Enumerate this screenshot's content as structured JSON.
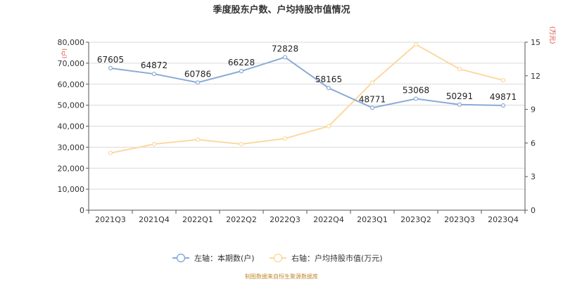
{
  "chart_data": {
    "type": "line",
    "title": "季度股东户数、户均持股市值情况",
    "categories": [
      "2021Q3",
      "2021Q4",
      "2022Q1",
      "2022Q2",
      "2022Q3",
      "2022Q4",
      "2023Q1",
      "2023Q2",
      "2023Q3",
      "2023Q4"
    ],
    "left_axis": {
      "unit_label": "(户)",
      "ylim": [
        0,
        80000
      ],
      "ticks": [
        "0",
        "10,000",
        "20,000",
        "30,000",
        "40,000",
        "50,000",
        "60,000",
        "70,000",
        "80,000"
      ]
    },
    "right_axis": {
      "unit_label": "(万元)",
      "ylim": [
        0,
        15
      ],
      "ticks": [
        "0",
        "3",
        "6",
        "9",
        "12",
        "15"
      ]
    },
    "series": [
      {
        "name": "左轴：本期数(户)",
        "axis": "left",
        "color": "#8aabd6",
        "values": [
          67605,
          64872,
          60786,
          66228,
          72828,
          58165,
          48771,
          53068,
          50291,
          49871
        ],
        "labels": [
          "67605",
          "64872",
          "60786",
          "66228",
          "72828",
          "58165",
          "48771",
          "53068",
          "50291",
          "49871"
        ]
      },
      {
        "name": "右轴：户均持股市值(万元)",
        "axis": "right",
        "color": "#fbd9a0",
        "values": [
          5.1,
          5.9,
          6.3,
          5.9,
          6.4,
          7.5,
          11.4,
          14.8,
          12.6,
          11.6
        ]
      }
    ],
    "grid": true,
    "legend_position": "bottom-center",
    "source": "制图数据来自恒生聚源数据库"
  }
}
